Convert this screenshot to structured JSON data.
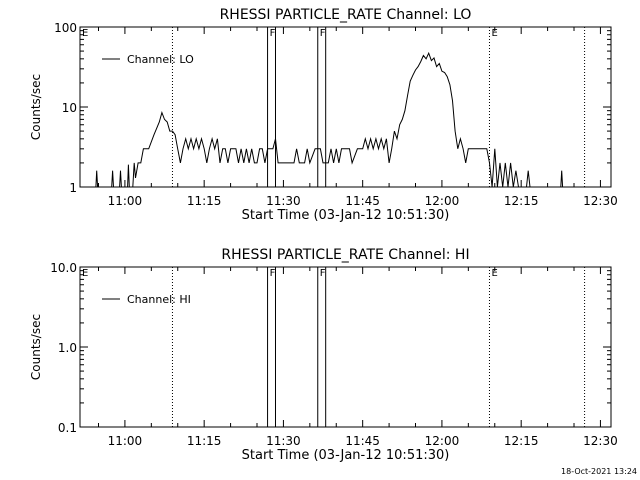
{
  "chart_data": [
    {
      "type": "line",
      "title": "RHESSI PARTICLE_RATE Channel: LO",
      "xlabel": "Start Time (03-Jan-12 10:51:30)",
      "ylabel": "Counts/sec",
      "y_scale": "log",
      "ylim": [
        1,
        100
      ],
      "xlim": [
        "10:51:30",
        "12:32:00"
      ],
      "x_ticks": [
        "11:00",
        "11:15",
        "11:30",
        "11:45",
        "12:00",
        "12:15",
        "12:30"
      ],
      "y_ticks": [
        "1",
        "10",
        "100"
      ],
      "legend": {
        "position": "top-left",
        "entries": [
          "Channel: LO"
        ]
      },
      "markers": [
        {
          "label": "E",
          "time": "10:51:30",
          "style": "dotted"
        },
        {
          "label": "",
          "time": "11:09:00",
          "style": "dotted"
        },
        {
          "label": "F",
          "time": "11:27:00",
          "style": "solid"
        },
        {
          "label": "",
          "time": "11:28:30",
          "style": "solid"
        },
        {
          "label": "F",
          "time": "11:36:30",
          "style": "solid"
        },
        {
          "label": "",
          "time": "11:38:00",
          "style": "solid"
        },
        {
          "label": "E",
          "time": "12:09:00",
          "style": "dotted"
        },
        {
          "label": "",
          "time": "12:27:00",
          "style": "dotted"
        }
      ],
      "series": [
        {
          "name": "Channel: LO",
          "points": [
            [
              "10:54:30",
              1
            ],
            [
              "10:54:40",
              1.6
            ],
            [
              "10:54:50",
              1
            ],
            [
              "10:57:30",
              1
            ],
            [
              "10:57:40",
              1.6
            ],
            [
              "10:57:50",
              1
            ],
            [
              "10:59:00",
              1
            ],
            [
              "10:59:10",
              1.6
            ],
            [
              "10:59:20",
              1
            ],
            [
              "11:00:30",
              1
            ],
            [
              "11:00:40",
              1.9
            ],
            [
              "11:00:50",
              1
            ],
            [
              "11:01:30",
              1
            ],
            [
              "11:01:45",
              2.0
            ],
            [
              "11:02:00",
              1.3
            ],
            [
              "11:02:30",
              2.0
            ],
            [
              "11:03:00",
              2.0
            ],
            [
              "11:03:30",
              3.0
            ],
            [
              "11:04:30",
              3.0
            ],
            [
              "11:05:30",
              4.5
            ],
            [
              "11:06:30",
              6.5
            ],
            [
              "11:07:00",
              8.5
            ],
            [
              "11:07:30",
              7.0
            ],
            [
              "11:08:00",
              6.5
            ],
            [
              "11:08:30",
              5.0
            ],
            [
              "11:09:00",
              5.0
            ],
            [
              "11:09:30",
              4.5
            ],
            [
              "11:10:00",
              3.0
            ],
            [
              "11:10:30",
              2.0
            ],
            [
              "11:11:00",
              3.0
            ],
            [
              "11:11:30",
              4.0
            ],
            [
              "11:12:00",
              3.0
            ],
            [
              "11:12:30",
              4.0
            ],
            [
              "11:13:00",
              3.0
            ],
            [
              "11:13:30",
              4.0
            ],
            [
              "11:14:00",
              3.0
            ],
            [
              "11:14:30",
              4.0
            ],
            [
              "11:15:00",
              3.0
            ],
            [
              "11:15:30",
              2.0
            ],
            [
              "11:16:00",
              3.0
            ],
            [
              "11:16:30",
              4.0
            ],
            [
              "11:17:00",
              3.0
            ],
            [
              "11:17:30",
              4.0
            ],
            [
              "11:18:00",
              2.0
            ],
            [
              "11:18:30",
              3.0
            ],
            [
              "11:19:00",
              3.0
            ],
            [
              "11:19:30",
              2.0
            ],
            [
              "11:20:00",
              3.0
            ],
            [
              "11:21:00",
              3.0
            ],
            [
              "11:21:30",
              2.0
            ],
            [
              "11:22:00",
              3.0
            ],
            [
              "11:22:30",
              2.0
            ],
            [
              "11:23:00",
              3.0
            ],
            [
              "11:23:30",
              2.0
            ],
            [
              "11:24:00",
              3.0
            ],
            [
              "11:24:30",
              2.0
            ],
            [
              "11:25:00",
              2.0
            ],
            [
              "11:25:30",
              3.0
            ],
            [
              "11:26:00",
              3.0
            ],
            [
              "11:26:30",
              2.0
            ],
            [
              "11:27:00",
              3.0
            ],
            [
              "11:28:00",
              3.0
            ],
            [
              "11:28:30",
              4.0
            ],
            [
              "11:29:00",
              2.0
            ],
            [
              "11:30:00",
              2.0
            ],
            [
              "11:31:00",
              2.0
            ],
            [
              "11:32:00",
              2.0
            ],
            [
              "11:32:30",
              3.0
            ],
            [
              "11:33:00",
              2.0
            ],
            [
              "11:34:00",
              2.0
            ],
            [
              "11:34:30",
              3.0
            ],
            [
              "11:35:00",
              2.0
            ],
            [
              "11:36:00",
              3.0
            ],
            [
              "11:37:00",
              3.0
            ],
            [
              "11:37:30",
              2.0
            ],
            [
              "11:38:30",
              2.0
            ],
            [
              "11:39:00",
              3.0
            ],
            [
              "11:39:30",
              2.0
            ],
            [
              "11:40:00",
              3.0
            ],
            [
              "11:40:30",
              2.0
            ],
            [
              "11:41:00",
              3.0
            ],
            [
              "11:42:00",
              3.0
            ],
            [
              "11:42:30",
              3.0
            ],
            [
              "11:43:00",
              2.0
            ],
            [
              "11:44:00",
              3.0
            ],
            [
              "11:45:00",
              3.0
            ],
            [
              "11:45:30",
              4.0
            ],
            [
              "11:46:00",
              3.0
            ],
            [
              "11:46:30",
              4.0
            ],
            [
              "11:47:00",
              3.0
            ],
            [
              "11:47:30",
              4.0
            ],
            [
              "11:48:00",
              3.0
            ],
            [
              "11:48:30",
              4.0
            ],
            [
              "11:49:00",
              3.0
            ],
            [
              "11:49:30",
              4.0
            ],
            [
              "11:50:00",
              2.0
            ],
            [
              "11:50:30",
              3.0
            ],
            [
              "11:51:00",
              5.0
            ],
            [
              "11:51:30",
              4.0
            ],
            [
              "11:52:00",
              6.0
            ],
            [
              "11:52:30",
              7.0
            ],
            [
              "11:53:00",
              9.0
            ],
            [
              "11:53:30",
              14.0
            ],
            [
              "11:54:00",
              21.0
            ],
            [
              "11:54:30",
              25.0
            ],
            [
              "11:55:00",
              29.0
            ],
            [
              "11:55:30",
              32.0
            ],
            [
              "11:56:00",
              37.0
            ],
            [
              "11:56:30",
              44.0
            ],
            [
              "11:57:00",
              40.0
            ],
            [
              "11:57:30",
              47.0
            ],
            [
              "11:58:00",
              38.0
            ],
            [
              "11:58:30",
              41.0
            ],
            [
              "11:59:00",
              32.0
            ],
            [
              "11:59:30",
              35.0
            ],
            [
              "12:00:00",
              28.0
            ],
            [
              "12:00:30",
              27.0
            ],
            [
              "12:01:00",
              24.0
            ],
            [
              "12:01:30",
              19.0
            ],
            [
              "12:02:00",
              12.0
            ],
            [
              "12:02:30",
              5.0
            ],
            [
              "12:03:00",
              3.0
            ],
            [
              "12:03:30",
              4.0
            ],
            [
              "12:04:00",
              3.0
            ],
            [
              "12:04:30",
              2.0
            ],
            [
              "12:05:00",
              3.0
            ],
            [
              "12:06:00",
              3.0
            ],
            [
              "12:07:00",
              3.0
            ],
            [
              "12:08:00",
              3.0
            ],
            [
              "12:08:30",
              3.0
            ],
            [
              "12:09:00",
              2.0
            ],
            [
              "12:09:30",
              1.0
            ],
            [
              "12:10:00",
              3.0
            ],
            [
              "12:10:30",
              1.0
            ],
            [
              "12:11:00",
              2.0
            ],
            [
              "12:11:30",
              1.0
            ],
            [
              "12:12:00",
              2.0
            ],
            [
              "12:12:30",
              1.0
            ],
            [
              "12:13:00",
              2.0
            ],
            [
              "12:13:30",
              1.0
            ],
            [
              "12:14:00",
              1.6
            ],
            [
              "12:14:30",
              1.0
            ],
            [
              "12:16:00",
              1.0
            ],
            [
              "12:16:20",
              1.6
            ],
            [
              "12:16:40",
              1.0
            ],
            [
              "12:22:30",
              1.0
            ],
            [
              "12:22:40",
              1.6
            ],
            [
              "12:22:50",
              1.0
            ]
          ]
        }
      ]
    },
    {
      "type": "line",
      "title": "RHESSI PARTICLE_RATE Channel: HI",
      "xlabel": "Start Time (03-Jan-12 10:51:30)",
      "ylabel": "Counts/sec",
      "y_scale": "log",
      "ylim": [
        0.1,
        10.0
      ],
      "xlim": [
        "10:51:30",
        "12:32:00"
      ],
      "x_ticks": [
        "11:00",
        "11:15",
        "11:30",
        "11:45",
        "12:00",
        "12:15",
        "12:30"
      ],
      "y_ticks": [
        "0.1",
        "1.0",
        "10.0"
      ],
      "legend": {
        "position": "top-left",
        "entries": [
          "Channel: HI"
        ]
      },
      "markers": [
        {
          "label": "E",
          "time": "10:51:30",
          "style": "dotted"
        },
        {
          "label": "",
          "time": "11:09:00",
          "style": "dotted"
        },
        {
          "label": "F",
          "time": "11:27:00",
          "style": "solid"
        },
        {
          "label": "",
          "time": "11:28:30",
          "style": "solid"
        },
        {
          "label": "F",
          "time": "11:36:30",
          "style": "solid"
        },
        {
          "label": "",
          "time": "11:38:00",
          "style": "solid"
        },
        {
          "label": "E",
          "time": "12:09:00",
          "style": "dotted"
        },
        {
          "label": "",
          "time": "12:27:00",
          "style": "dotted"
        }
      ],
      "series": [
        {
          "name": "Channel: HI",
          "points": []
        }
      ]
    }
  ],
  "footer": {
    "date": "18-Oct-2021 13:24"
  }
}
